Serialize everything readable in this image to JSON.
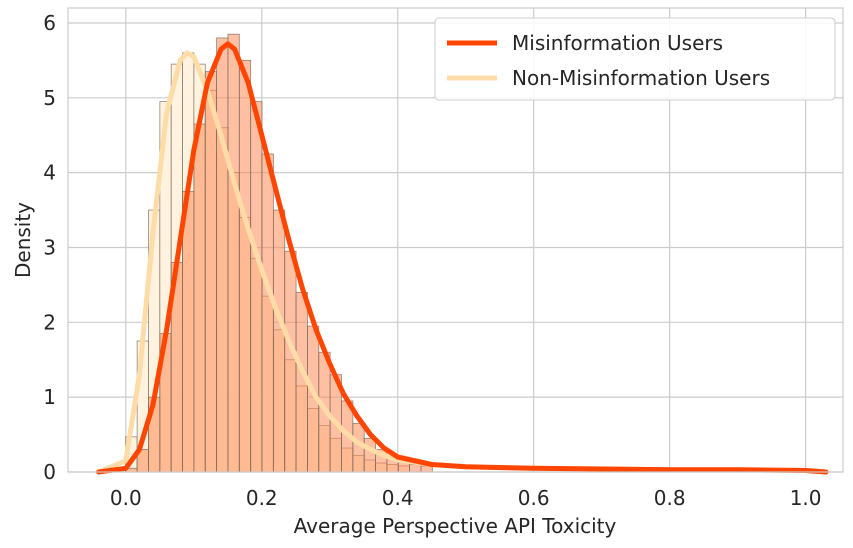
{
  "chart_data": {
    "type": "histogram",
    "title": "",
    "xlabel": "Average Perspective API Toxicity",
    "ylabel": "Density",
    "xlim": [
      -0.085,
      1.055
    ],
    "ylim": [
      0,
      6.2
    ],
    "xticks": [
      0.0,
      0.2,
      0.4,
      0.6,
      0.8,
      1.0
    ],
    "xtick_labels": [
      "0.0",
      "0.2",
      "0.4",
      "0.6",
      "0.8",
      "1.0"
    ],
    "yticks": [
      0,
      1,
      2,
      3,
      4,
      5,
      6
    ],
    "ytick_labels": [
      "0",
      "1",
      "2",
      "3",
      "4",
      "5",
      "6"
    ],
    "grid": true,
    "legend_position": "top-right",
    "bin_width": 0.0167,
    "series": [
      {
        "name": "Non-Misinformation Users",
        "color": "#FDDCA8",
        "bin_start": 0.0,
        "densities": [
          0.47,
          1.75,
          3.5,
          4.95,
          5.45,
          5.6,
          5.45,
          5.1,
          4.6,
          4.0,
          3.4,
          2.85,
          2.35,
          1.9,
          1.5,
          1.15,
          0.85,
          0.62,
          0.45,
          0.32,
          0.22,
          0.16,
          0.12,
          0.1,
          0.08
        ],
        "kde_x": [
          -0.04,
          0.0,
          0.02,
          0.04,
          0.06,
          0.08,
          0.09,
          0.1,
          0.12,
          0.14,
          0.16,
          0.18,
          0.2,
          0.22,
          0.24,
          0.26,
          0.28,
          0.3,
          0.32,
          0.34,
          0.36,
          0.38,
          0.4,
          0.45,
          0.5,
          0.6,
          0.7,
          0.8,
          0.9,
          1.0,
          1.03
        ],
        "kde_y": [
          0.0,
          0.15,
          1.3,
          3.2,
          4.8,
          5.5,
          5.6,
          5.55,
          5.1,
          4.5,
          3.85,
          3.25,
          2.7,
          2.2,
          1.75,
          1.35,
          1.0,
          0.75,
          0.55,
          0.4,
          0.3,
          0.22,
          0.16,
          0.1,
          0.07,
          0.05,
          0.04,
          0.03,
          0.03,
          0.02,
          0.0
        ]
      },
      {
        "name": "Misinformation Users",
        "color": "#FF4500",
        "bin_start": 0.0,
        "densities": [
          0.05,
          0.3,
          1.0,
          1.85,
          2.8,
          3.75,
          4.65,
          5.35,
          5.8,
          5.85,
          5.5,
          4.95,
          4.25,
          3.5,
          2.95,
          2.4,
          1.95,
          1.6,
          1.3,
          0.95,
          0.65,
          0.45,
          0.3,
          0.2,
          0.14,
          0.1,
          0.08
        ],
        "kde_x": [
          -0.04,
          0.0,
          0.02,
          0.04,
          0.06,
          0.08,
          0.1,
          0.12,
          0.14,
          0.15,
          0.16,
          0.18,
          0.2,
          0.22,
          0.24,
          0.26,
          0.28,
          0.3,
          0.32,
          0.34,
          0.36,
          0.38,
          0.4,
          0.45,
          0.5,
          0.6,
          0.7,
          0.8,
          0.9,
          1.0,
          1.03
        ],
        "kde_y": [
          0.0,
          0.05,
          0.3,
          0.9,
          1.9,
          3.1,
          4.3,
          5.2,
          5.65,
          5.72,
          5.65,
          5.2,
          4.5,
          3.8,
          3.1,
          2.45,
          1.9,
          1.45,
          1.05,
          0.75,
          0.5,
          0.32,
          0.2,
          0.1,
          0.07,
          0.05,
          0.04,
          0.03,
          0.03,
          0.02,
          0.0
        ]
      }
    ],
    "legend": [
      {
        "label": "Misinformation Users",
        "color": "#FF4500"
      },
      {
        "label": "Non-Misinformation Users",
        "color": "#FDDCA8"
      }
    ]
  }
}
